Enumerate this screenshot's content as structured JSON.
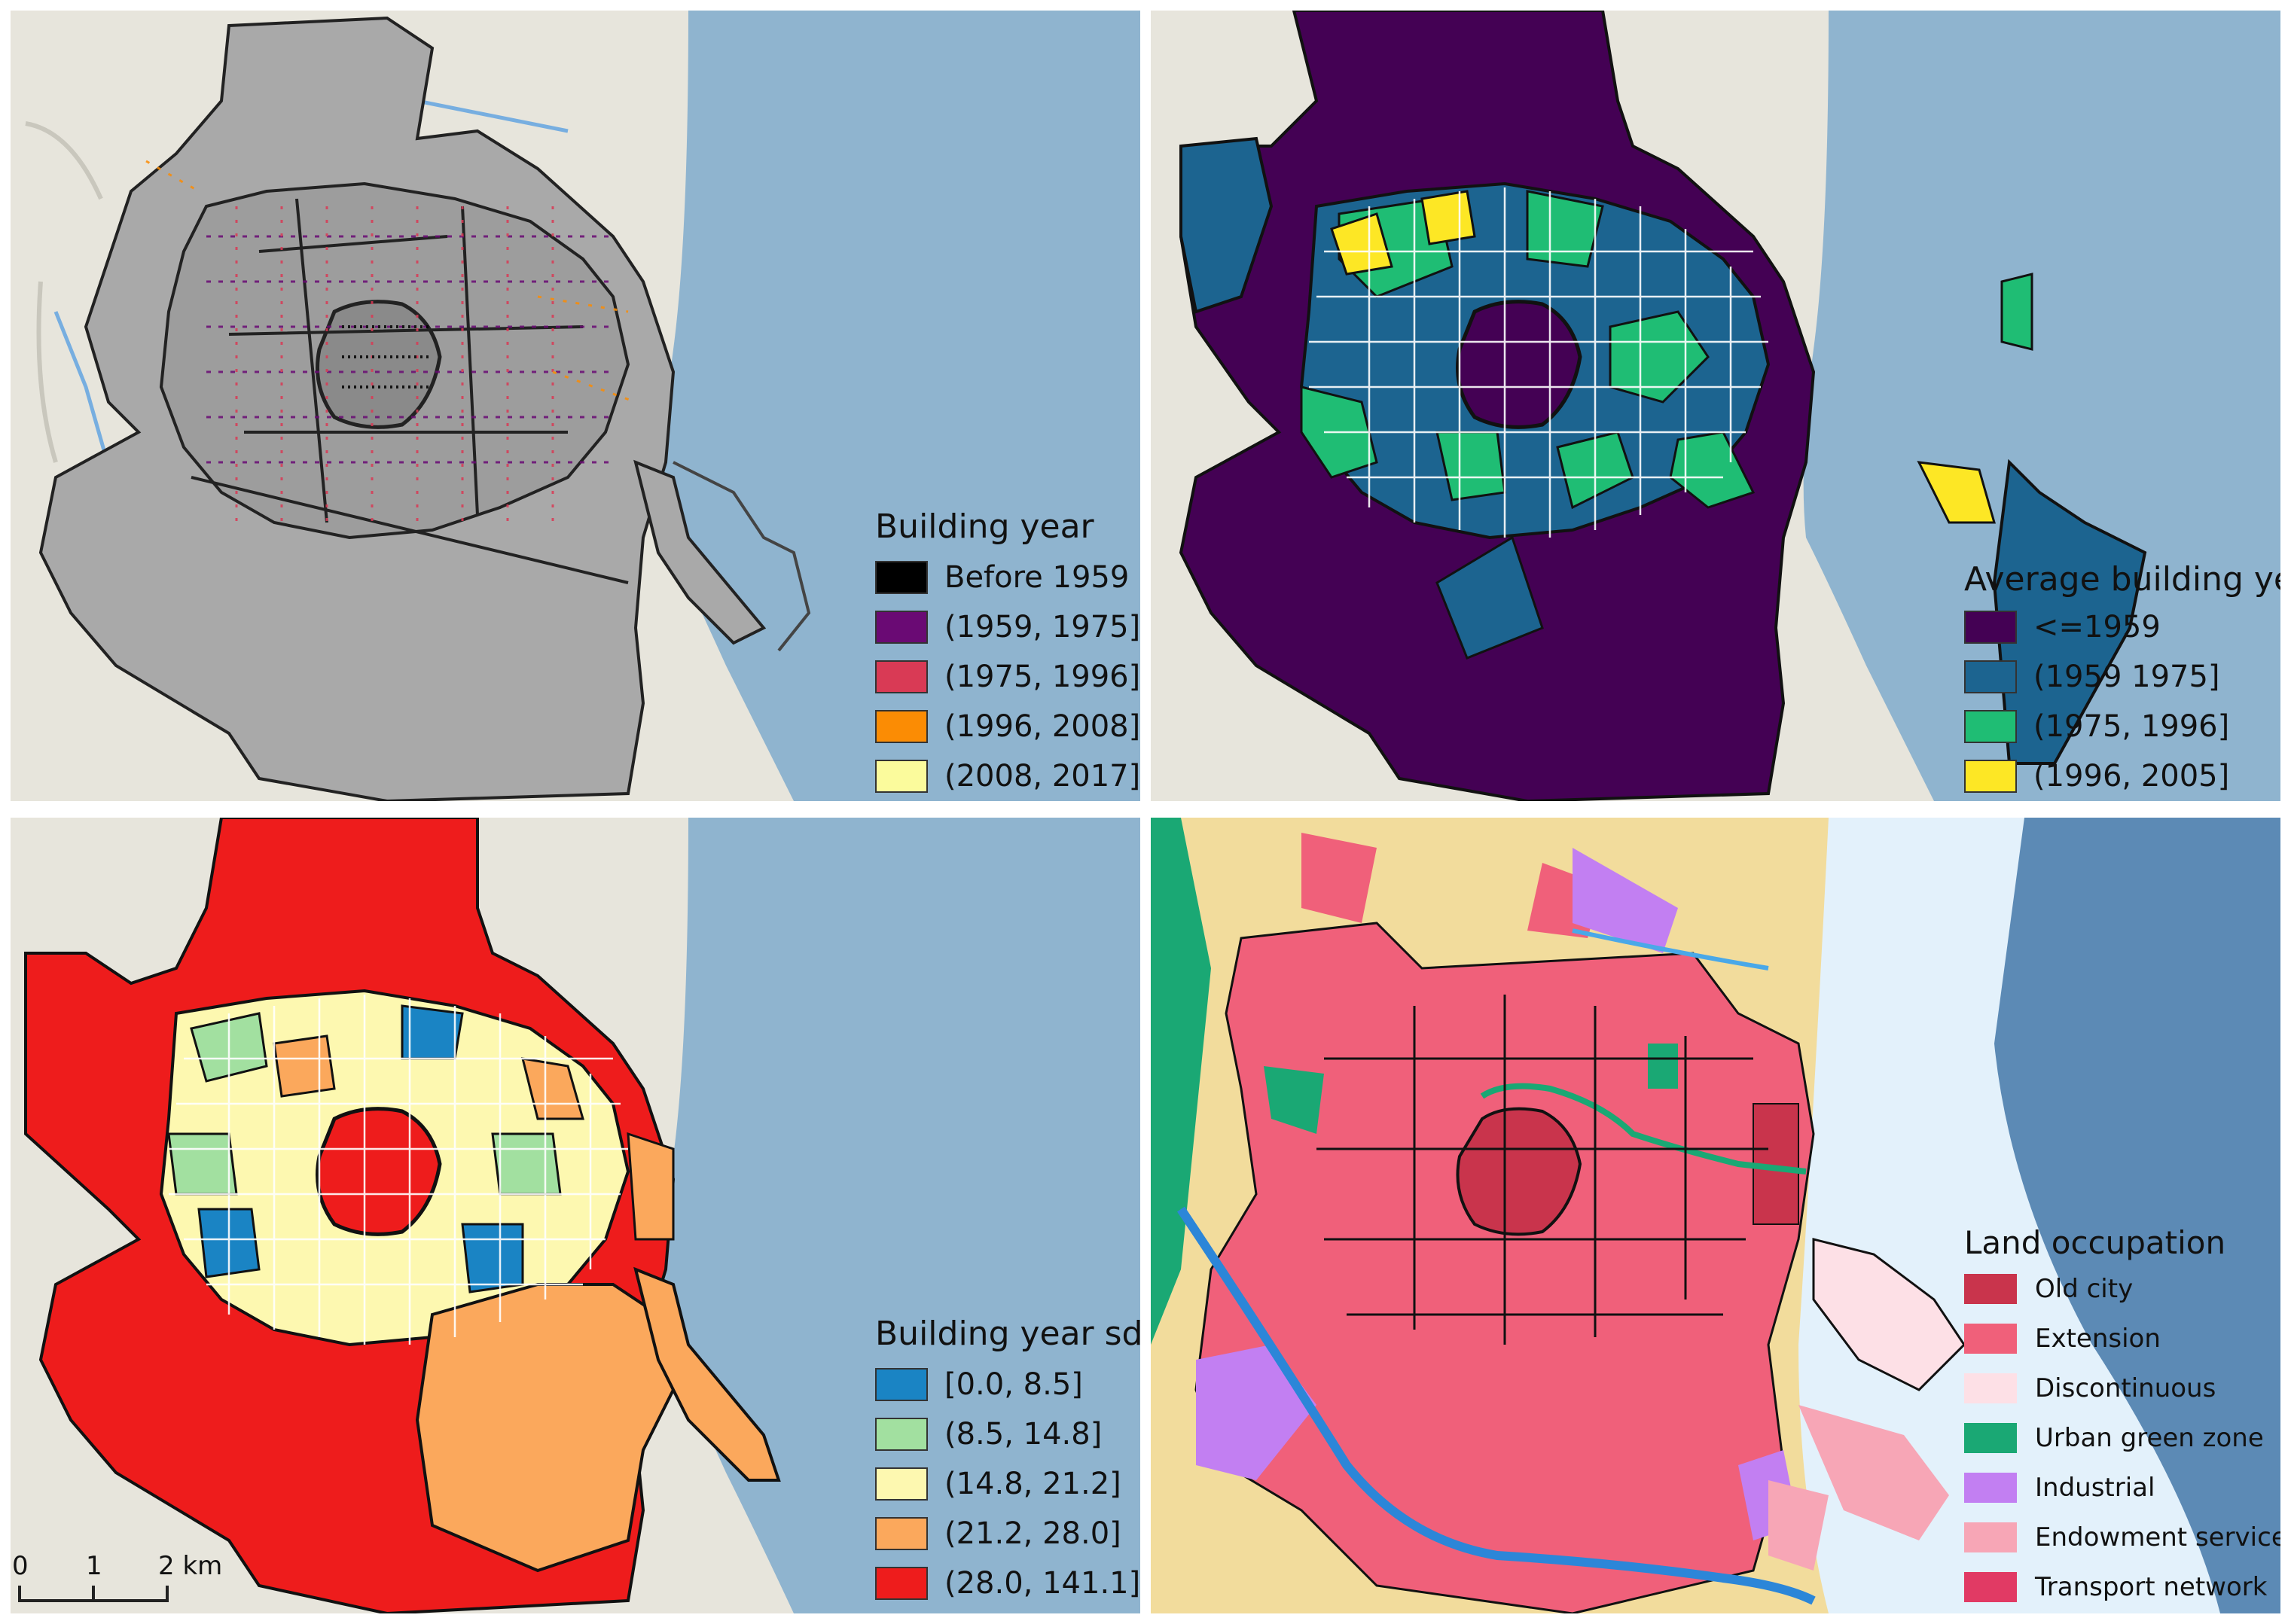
{
  "panels": {
    "building_year": {
      "legend_title": "Building year",
      "items": [
        {
          "label": "Before 1959",
          "color": "#000000"
        },
        {
          "label": "(1959, 1975]",
          "color": "#6a0a74"
        },
        {
          "label": "(1975, 1996]",
          "color": "#d93a55"
        },
        {
          "label": "(1996, 2008]",
          "color": "#fb8c04"
        },
        {
          "label": "(2008, 2017]",
          "color": "#fbfb9c"
        }
      ]
    },
    "average_building_year": {
      "legend_title": "Average building year",
      "items": [
        {
          "label": "<=1959",
          "color": "#440154"
        },
        {
          "label": "(1959 1975]",
          "color": "#1c6490"
        },
        {
          "label": "(1975, 1996]",
          "color": "#1fbd74"
        },
        {
          "label": "(1996, 2005]",
          "color": "#fde725"
        }
      ]
    },
    "building_year_sd": {
      "legend_title": "Building year sd",
      "items": [
        {
          "label": "[0.0, 8.5]",
          "color": "#1a84c4"
        },
        {
          "label": "(8.5, 14.8]",
          "color": "#a2e0a0"
        },
        {
          "label": "(14.8, 21.2]",
          "color": "#fdf8b0"
        },
        {
          "label": "(21.2, 28.0]",
          "color": "#fba85c"
        },
        {
          "label": "(28.0, 141.1]",
          "color": "#ee1c1c"
        }
      ],
      "scale_bar": {
        "ticks": [
          "0",
          "1",
          "2 km"
        ]
      }
    },
    "land_occupation": {
      "legend_title": "Land occupation",
      "items": [
        {
          "label": "Old city",
          "color": "#c9344c"
        },
        {
          "label": "Extension",
          "color": "#f0607a"
        },
        {
          "label": "Discontinuous",
          "color": "#fde0e6"
        },
        {
          "label": "Urban green zone",
          "color": "#1aa874"
        },
        {
          "label": "Industrial",
          "color": "#c27ff2"
        },
        {
          "label": "Endowment service",
          "color": "#f7a6b6"
        },
        {
          "label": "Transport network",
          "color": "#e13a64"
        }
      ]
    }
  }
}
